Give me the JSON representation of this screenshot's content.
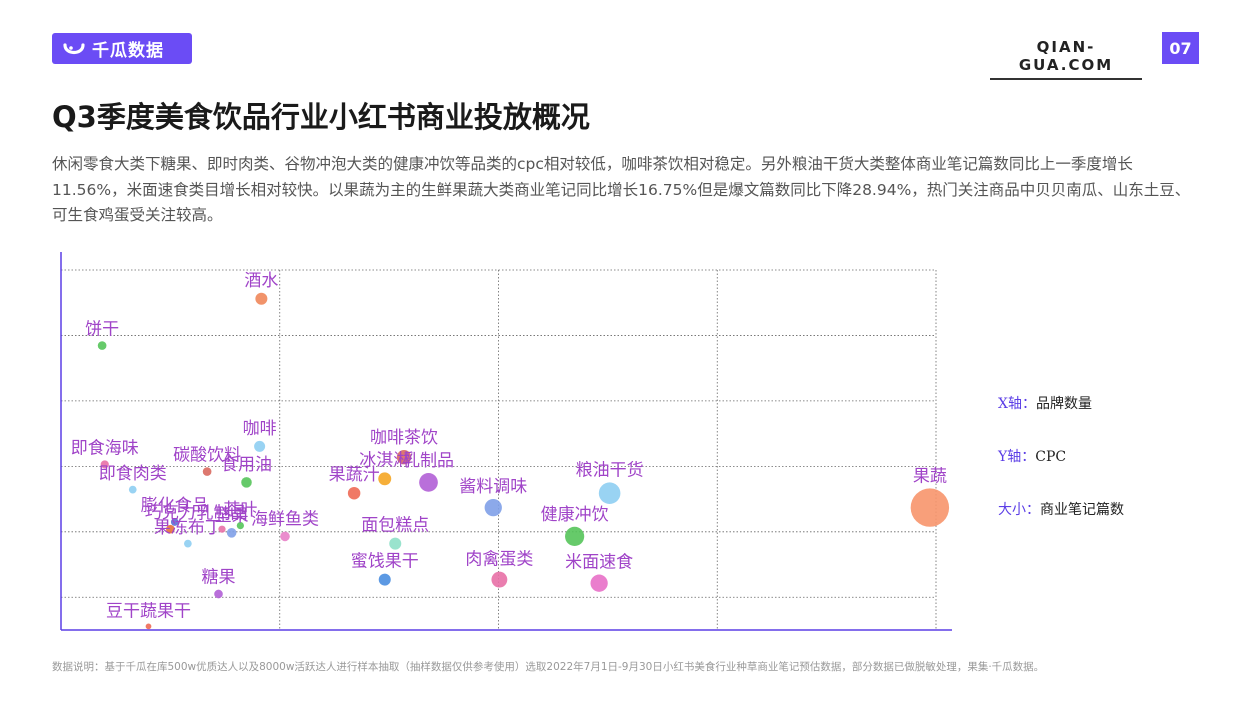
{
  "header": {
    "brand_name": "千瓜数据",
    "site": "QIAN-GUA.COM",
    "page_number": "07"
  },
  "title": "Q3季度美食饮品行业小红书商业投放概况",
  "description": "休闲零食大类下糖果、即时肉类、谷物冲泡大类的健康冲饮等品类的cpc相对较低，咖啡茶饮相对稳定。另外粮油干货大类整体商业笔记篇数同比上一季度增长11.56%，米面速食类目增长相对较快。以果蔬为主的生鲜果蔬大类商业笔记同比增长16.75%但是爆文篇数同比下降28.94%，热门关注商品中贝贝南瓜、山东土豆、可生食鸡蛋受关注较高。",
  "legend": [
    {
      "key": "X轴：",
      "value": "品牌数量"
    },
    {
      "key": "Y轴：",
      "value": "CPC"
    },
    {
      "key": "大小：",
      "value": "商业笔记篇数"
    }
  ],
  "footnote": "数据说明：基于千瓜在库500w优质达人以及8000w活跃达人进行样本抽取（抽样数据仅供参考使用）选取2022年7月1日-9月30日小红书美食行业种草商业笔记预估数据，部分数据已做脱敏处理，果集·千瓜数据。",
  "chart_data": {
    "type": "scatter",
    "xlabel": "品牌数量",
    "ylabel": "CPC",
    "size_label": "商业笔记篇数",
    "xlim": [
      0,
      10
    ],
    "ylim": [
      0,
      100
    ],
    "grid": true,
    "points": [
      {
        "name": "酒水",
        "x": 2.29,
        "y": 92,
        "size": 2.5,
        "color": "#f0875a"
      },
      {
        "name": "饼干",
        "x": 0.47,
        "y": 79,
        "size": 1.8,
        "color": "#55c45a"
      },
      {
        "name": "咖啡",
        "x": 2.27,
        "y": 51,
        "size": 2.3,
        "color": "#8ecef2"
      },
      {
        "name": "咖啡茶饮",
        "x": 3.92,
        "y": 48,
        "size": 3.0,
        "color": "#d9695f"
      },
      {
        "name": "冰淇淋",
        "x": 3.7,
        "y": 42,
        "size": 2.7,
        "color": "#f5a623"
      },
      {
        "name": "乳制品",
        "x": 4.2,
        "y": 41,
        "size": 3.9,
        "color": "#b15fd6"
      },
      {
        "name": "果蔬汁",
        "x": 3.35,
        "y": 38,
        "size": 2.6,
        "color": "#ee6a55"
      },
      {
        "name": "即食海味",
        "x": 0.5,
        "y": 46,
        "size": 1.7,
        "color": "#e870a6"
      },
      {
        "name": "碳酸饮料",
        "x": 1.67,
        "y": 44,
        "size": 1.8,
        "color": "#d9695f"
      },
      {
        "name": "食用油",
        "x": 2.12,
        "y": 41,
        "size": 2.2,
        "color": "#55c45a"
      },
      {
        "name": "即食肉类",
        "x": 0.82,
        "y": 39,
        "size": 1.6,
        "color": "#8ecef2"
      },
      {
        "name": "粮油干货",
        "x": 6.27,
        "y": 38,
        "size": 4.5,
        "color": "#8ecef2"
      },
      {
        "name": "酱料调味",
        "x": 4.94,
        "y": 34,
        "size": 3.6,
        "color": "#7fa0e8"
      },
      {
        "name": "果蔬",
        "x": 9.93,
        "y": 34,
        "size": 8.0,
        "color": "#f7956b"
      },
      {
        "name": "膨化食品",
        "x": 1.3,
        "y": 30,
        "size": 1.6,
        "color": "#5c6fd6"
      },
      {
        "name": "巧克力",
        "x": 1.25,
        "y": 28,
        "size": 1.8,
        "color": "#e8703a"
      },
      {
        "name": "茶叶",
        "x": 2.05,
        "y": 29,
        "size": 1.5,
        "color": "#55c45a"
      },
      {
        "name": "坚果",
        "x": 1.95,
        "y": 27,
        "size": 2.0,
        "color": "#7fa0e8"
      },
      {
        "name": "乳制品",
        "x": 1.84,
        "y": 28,
        "size": 1.5,
        "color": "#e870a6"
      },
      {
        "name": "海鲜鱼类",
        "x": 2.56,
        "y": 26,
        "size": 2.0,
        "color": "#e87fc8"
      },
      {
        "name": "果冻布丁",
        "x": 1.45,
        "y": 24,
        "size": 1.6,
        "color": "#8ecef2"
      },
      {
        "name": "健康冲饮",
        "x": 5.87,
        "y": 26,
        "size": 4.0,
        "color": "#55c45a"
      },
      {
        "name": "面包糕点",
        "x": 3.82,
        "y": 24,
        "size": 2.5,
        "color": "#8ee0c8"
      },
      {
        "name": "蜜饯果干",
        "x": 3.7,
        "y": 14,
        "size": 2.5,
        "color": "#4a8ee0"
      },
      {
        "name": "肉禽蛋类",
        "x": 5.01,
        "y": 14,
        "size": 3.3,
        "color": "#e870a6"
      },
      {
        "name": "米面速食",
        "x": 6.15,
        "y": 13,
        "size": 3.6,
        "color": "#e870c8"
      },
      {
        "name": "糖果",
        "x": 1.8,
        "y": 10,
        "size": 1.8,
        "color": "#b15fd6"
      },
      {
        "name": "豆干蔬果干",
        "x": 1.0,
        "y": 1,
        "size": 1.2,
        "color": "#ee6a55"
      }
    ]
  }
}
